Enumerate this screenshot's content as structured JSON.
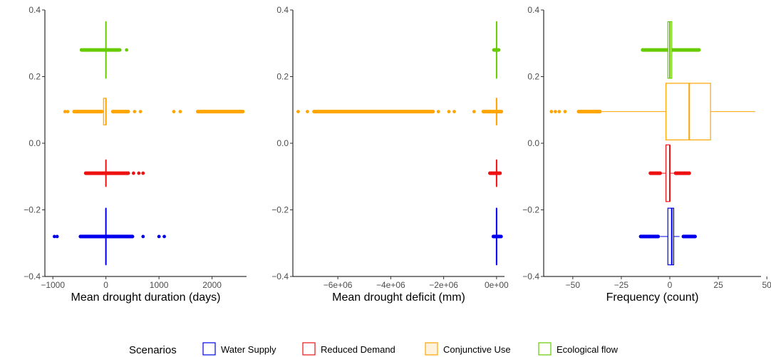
{
  "legend": {
    "title": "Scenarios",
    "items": [
      {
        "label": "Water Supply",
        "color": "#0000ee"
      },
      {
        "label": "Reduced Demand",
        "color": "#ee1111"
      },
      {
        "label": "Conjunctive Use",
        "color": "#ffa500"
      },
      {
        "label": "Ecological flow",
        "color": "#66cc00"
      }
    ]
  },
  "chart_data": [
    {
      "type": "boxplot",
      "orientation": "horizontal",
      "xlabel": "Mean drought duration (days)",
      "ylabel": "",
      "xlim": [
        -1150,
        2650
      ],
      "ylim": [
        -0.4,
        0.4
      ],
      "x_ticks": [
        {
          "value": -1000,
          "label": "−1000"
        },
        {
          "value": 0,
          "label": "0"
        },
        {
          "value": 1000,
          "label": "1000"
        },
        {
          "value": 2000,
          "label": "2000"
        }
      ],
      "y_ticks": [
        {
          "value": 0.4,
          "label": "0.4"
        },
        {
          "value": 0.2,
          "label": "0.2"
        },
        {
          "value": 0.0,
          "label": "0.0"
        },
        {
          "value": -0.2,
          "label": "−0.2"
        },
        {
          "value": -0.4,
          "label": "−0.4"
        }
      ],
      "grid": false,
      "series": [
        {
          "name": "Water Supply",
          "y": -0.28,
          "q1": -2,
          "median": 0,
          "q3": 2,
          "whisker_low": -3,
          "whisker_high": 3,
          "box_height": 0.17,
          "outlier_ranges": [
            [
              -480,
              500
            ]
          ],
          "outliers": [
            -970,
            -920,
            700,
            1000,
            1100
          ]
        },
        {
          "name": "Reduced Demand",
          "y": -0.09,
          "q1": -1,
          "median": 0,
          "q3": 1,
          "whisker_low": -2,
          "whisker_high": 2,
          "box_height": 0.08,
          "outlier_ranges": [
            [
              -380,
              420
            ]
          ],
          "outliers": [
            520,
            620,
            700
          ]
        },
        {
          "name": "Conjunctive Use",
          "y": 0.095,
          "q1": -45,
          "median": 0,
          "q3": 5,
          "whisker_low": -50,
          "whisker_high": 10,
          "box_height": 0.08,
          "outlier_ranges": [
            [
              -600,
              -80
            ],
            [
              130,
              420
            ],
            [
              1730,
              2580
            ]
          ],
          "outliers": [
            -770,
            -720,
            540,
            650,
            1280,
            1400
          ]
        },
        {
          "name": "Ecological flow",
          "y": 0.28,
          "q1": -1,
          "median": 0,
          "q3": 1,
          "whisker_low": -2,
          "whisker_high": 2,
          "box_height": 0.17,
          "outlier_ranges": [
            [
              -460,
              260
            ]
          ],
          "outliers": [
            390
          ]
        }
      ]
    },
    {
      "type": "boxplot",
      "orientation": "horizontal",
      "xlabel": "Mean drought deficit (mm)",
      "ylabel": "",
      "xlim": [
        -7700000,
        300000
      ],
      "ylim": [
        -0.4,
        0.4
      ],
      "x_ticks": [
        {
          "value": -6000000,
          "label": "−6e+06"
        },
        {
          "value": -4000000,
          "label": "−4e+06"
        },
        {
          "value": -2000000,
          "label": "−2e+06"
        },
        {
          "value": 0,
          "label": "0e+00"
        }
      ],
      "y_ticks": [
        {
          "value": 0.4,
          "label": "0.4"
        },
        {
          "value": 0.2,
          "label": "0.2"
        },
        {
          "value": 0.0,
          "label": "0.0"
        },
        {
          "value": -0.2,
          "label": "−0.2"
        },
        {
          "value": -0.4,
          "label": "−0.4"
        }
      ],
      "grid": false,
      "series": [
        {
          "name": "Water Supply",
          "y": -0.28,
          "q1": -5000,
          "median": 0,
          "q3": 5000,
          "whisker_low": -8000,
          "whisker_high": 8000,
          "box_height": 0.17,
          "outlier_ranges": [
            [
              -120000,
              170000
            ]
          ],
          "outliers": []
        },
        {
          "name": "Reduced Demand",
          "y": -0.09,
          "q1": -5000,
          "median": 0,
          "q3": 5000,
          "whisker_low": -8000,
          "whisker_high": 8000,
          "box_height": 0.08,
          "outlier_ranges": [
            [
              -250000,
              130000
            ]
          ],
          "outliers": []
        },
        {
          "name": "Conjunctive Use",
          "y": 0.095,
          "q1": -10000,
          "median": 0,
          "q3": 10000,
          "whisker_low": -15000,
          "whisker_high": 15000,
          "box_height": 0.08,
          "outlier_ranges": [
            [
              -6900000,
              -2400000
            ],
            [
              -500000,
              180000
            ]
          ],
          "outliers": [
            -7500000,
            -7150000,
            -2200000,
            -1800000,
            -1600000,
            -850000
          ]
        },
        {
          "name": "Ecological flow",
          "y": 0.28,
          "q1": -5000,
          "median": 0,
          "q3": 5000,
          "whisker_low": -8000,
          "whisker_high": 8000,
          "box_height": 0.17,
          "outlier_ranges": [
            [
              -100000,
              80000
            ]
          ],
          "outliers": []
        }
      ]
    },
    {
      "type": "boxplot",
      "orientation": "horizontal",
      "xlabel": "Frequency (count)",
      "ylabel": "",
      "xlim": [
        -65,
        47
      ],
      "ylim": [
        -0.4,
        0.4
      ],
      "x_ticks": [
        {
          "value": -50,
          "label": "−50"
        },
        {
          "value": -25,
          "label": "−25"
        },
        {
          "value": 0,
          "label": "0"
        },
        {
          "value": 25,
          "label": "25"
        },
        {
          "value": 50,
          "label": "50"
        }
      ],
      "y_ticks": [
        {
          "value": 0.4,
          "label": "0.4"
        },
        {
          "value": 0.2,
          "label": "0.2"
        },
        {
          "value": 0.0,
          "label": "0.0"
        },
        {
          "value": -0.2,
          "label": "−0.2"
        },
        {
          "value": -0.4,
          "label": "−0.4"
        }
      ],
      "grid": false,
      "series": [
        {
          "name": "Water Supply",
          "y": -0.28,
          "q1": -1,
          "median": 1,
          "q3": 2,
          "whisker_low": -5,
          "whisker_high": 5,
          "box_height": 0.17,
          "outlier_ranges": [
            [
              -15,
              -6
            ],
            [
              7,
              13
            ]
          ],
          "outliers": []
        },
        {
          "name": "Reduced Demand",
          "y": -0.09,
          "q1": -2,
          "median": 0,
          "q3": 0,
          "whisker_low": -4,
          "whisker_high": 3,
          "box_height": 0.17,
          "outlier_ranges": [
            [
              -10,
              -5
            ],
            [
              3,
              10
            ]
          ],
          "outliers": []
        },
        {
          "name": "Conjunctive Use",
          "y": 0.095,
          "q1": -2,
          "median": 10,
          "q3": 21,
          "whisker_low": -35,
          "whisker_high": 44,
          "box_height": 0.17,
          "outlier_ranges": [
            [
              -47,
              -36
            ]
          ],
          "outliers": [
            -61,
            -59,
            -57,
            -54
          ]
        },
        {
          "name": "Ecological flow",
          "y": 0.28,
          "q1": -1,
          "median": 0,
          "q3": 1,
          "whisker_low": -2,
          "whisker_high": 2,
          "box_height": 0.17,
          "outlier_ranges": [
            [
              -14,
              15
            ]
          ],
          "outliers": [
            -14,
            15
          ]
        }
      ]
    }
  ]
}
